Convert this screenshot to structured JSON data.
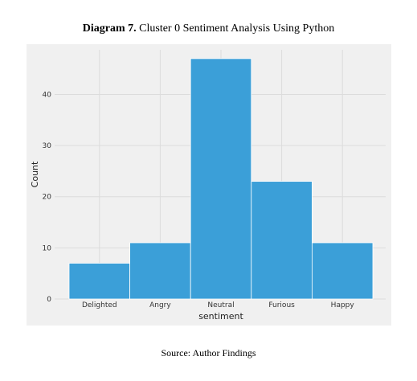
{
  "figure": {
    "label": "Diagram 7.",
    "caption": "Cluster 0 Sentiment Analysis Using Python",
    "source": "Source: Author Findings"
  },
  "chart_data": {
    "type": "bar",
    "categories": [
      "Delighted",
      "Angry",
      "Neutral",
      "Furious",
      "Happy"
    ],
    "values": [
      7,
      11,
      47,
      23,
      11
    ],
    "xlabel": "sentiment",
    "ylabel": "Count",
    "ylim": [
      0,
      49.5
    ],
    "yticks": [
      0,
      10,
      20,
      30,
      40
    ],
    "grid": true,
    "bar_color": "#3b9fd8",
    "bar_edge_color": "#ffffff",
    "plot_background": "#f0f0f0"
  }
}
